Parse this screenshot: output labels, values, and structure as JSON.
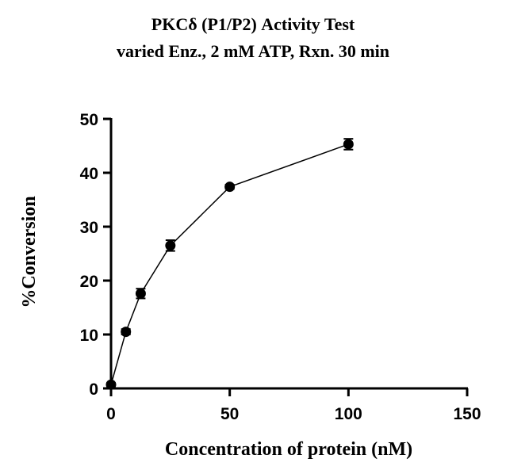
{
  "chart_data": {
    "type": "line",
    "title": "PKCδ (P1/P2) Activity Test",
    "subtitle": "varied Enz., 2 mM ATP, Rxn. 30 min",
    "xlabel": "Concentration of protein (nM)",
    "ylabel": "%Conversion",
    "xlim": [
      0,
      150
    ],
    "ylim": [
      0,
      50
    ],
    "xticks": [
      0,
      50,
      100,
      150
    ],
    "yticks": [
      0,
      10,
      20,
      30,
      40,
      50
    ],
    "grid": false,
    "series": [
      {
        "name": "PKCδ (P1/P2)",
        "x": [
          0,
          6.25,
          12.5,
          25,
          50,
          100
        ],
        "y": [
          0.7,
          10.5,
          17.6,
          26.5,
          37.4,
          45.3
        ],
        "error": [
          0.3,
          0.5,
          0.9,
          1.0,
          0.4,
          1.0
        ]
      }
    ]
  },
  "colors": {
    "axis": "#000000",
    "marker": "#000000",
    "line": "#000000"
  }
}
